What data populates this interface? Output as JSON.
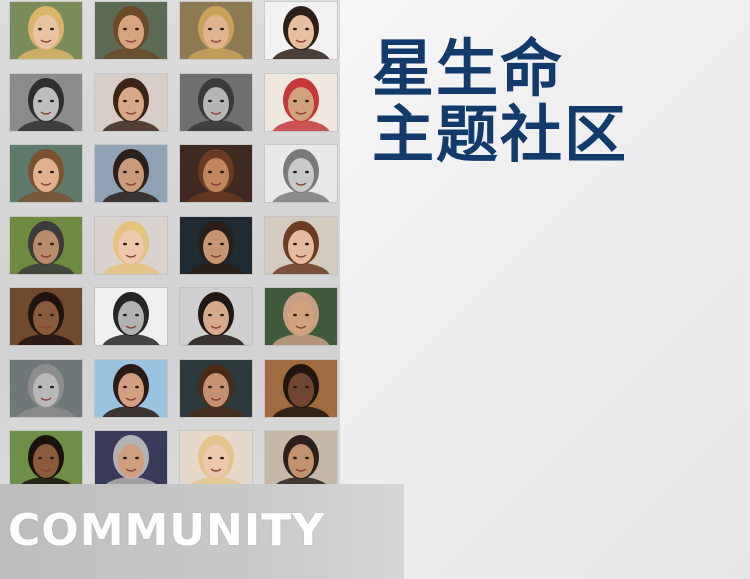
{
  "title": {
    "line1": "星生命",
    "line2": "主题社区"
  },
  "banner": {
    "label": "COMMUNITY"
  },
  "colors": {
    "title": "#123a6b",
    "banner_text": "#ffffff"
  },
  "portraits": [
    {
      "name": "portrait-photo-1",
      "bg": "#7a8c5a",
      "skin": "#e8c3a2",
      "hair": "#d9b46a"
    },
    {
      "name": "portrait-photo-2",
      "bg": "#5b6b54",
      "skin": "#d8a47f",
      "hair": "#6b4a2a"
    },
    {
      "name": "portrait-photo-3",
      "bg": "#8c7a52",
      "skin": "#e0b48f",
      "hair": "#c9a25a"
    },
    {
      "name": "portrait-photo-4",
      "bg": "#f2f2f2",
      "skin": "#e6bfa0",
      "hair": "#2d2018"
    },
    {
      "name": "portrait-photo-5",
      "bg": "#8c8c8c",
      "skin": "#bdbdbd",
      "hair": "#2f2f2f"
    },
    {
      "name": "portrait-photo-6",
      "bg": "#d7cfc7",
      "skin": "#d7a889",
      "hair": "#3b2418"
    },
    {
      "name": "portrait-photo-7",
      "bg": "#6f6f6f",
      "skin": "#b5b5b5",
      "hair": "#3a3a3a"
    },
    {
      "name": "portrait-photo-8",
      "bg": "#efe8df",
      "skin": "#d1a27d",
      "hair": "#c4373a"
    },
    {
      "name": "portrait-photo-9",
      "bg": "#5d7a6b",
      "skin": "#e0b08f",
      "hair": "#7a5232"
    },
    {
      "name": "portrait-photo-10",
      "bg": "#8fa2b5",
      "skin": "#c99b7a",
      "hair": "#2a211c"
    },
    {
      "name": "portrait-photo-11",
      "bg": "#3e2a20",
      "skin": "#c2865f",
      "hair": "#6a3a22"
    },
    {
      "name": "portrait-photo-12",
      "bg": "#e9e9e9",
      "skin": "#c9c9c9",
      "hair": "#7a7a7a"
    },
    {
      "name": "portrait-photo-13",
      "bg": "#6d8a3f",
      "skin": "#b88b6a",
      "hair": "#3b3b3b"
    },
    {
      "name": "portrait-photo-14",
      "bg": "#d9d2cf",
      "skin": "#edc7ae",
      "hair": "#e3c27c"
    },
    {
      "name": "portrait-photo-15",
      "bg": "#1f2a33",
      "skin": "#c89574",
      "hair": "#2a1e18"
    },
    {
      "name": "portrait-photo-16",
      "bg": "#d4cbbf",
      "skin": "#e6bca0",
      "hair": "#6b3b23"
    },
    {
      "name": "portrait-photo-17",
      "bg": "#6f4a2f",
      "skin": "#8a5a3c",
      "hair": "#1e1410"
    },
    {
      "name": "portrait-photo-18",
      "bg": "#f0f0f0",
      "skin": "#b2b2b2",
      "hair": "#252525"
    },
    {
      "name": "portrait-photo-19",
      "bg": "#cfcfcf",
      "skin": "#d6a98c",
      "hair": "#201814"
    },
    {
      "name": "portrait-photo-20",
      "bg": "#3f5a3a",
      "skin": "#d2a17e",
      "hair": "#c79f86"
    },
    {
      "name": "portrait-photo-21",
      "bg": "#6f7779",
      "skin": "#b9b9b9",
      "hair": "#8d8d8d"
    },
    {
      "name": "portrait-photo-22",
      "bg": "#9ac3df",
      "skin": "#d2a081",
      "hair": "#2a1b15"
    },
    {
      "name": "portrait-photo-23",
      "bg": "#2c3a3e",
      "skin": "#c69072",
      "hair": "#4a2b1a"
    },
    {
      "name": "portrait-photo-24",
      "bg": "#a06b3f",
      "skin": "#6e4632",
      "hair": "#20150f"
    },
    {
      "name": "portrait-photo-25",
      "bg": "#6d8f47",
      "skin": "#8c5a3c",
      "hair": "#1a120e"
    },
    {
      "name": "portrait-photo-26",
      "bg": "#3a3a5a",
      "skin": "#cf9f80",
      "hair": "#b3b3b3"
    },
    {
      "name": "portrait-photo-27",
      "bg": "#e7d8cc",
      "skin": "#edc7ae",
      "hair": "#e3c48c"
    },
    {
      "name": "portrait-photo-28",
      "bg": "#c6b8a6",
      "skin": "#c29170",
      "hair": "#2a211c"
    }
  ]
}
